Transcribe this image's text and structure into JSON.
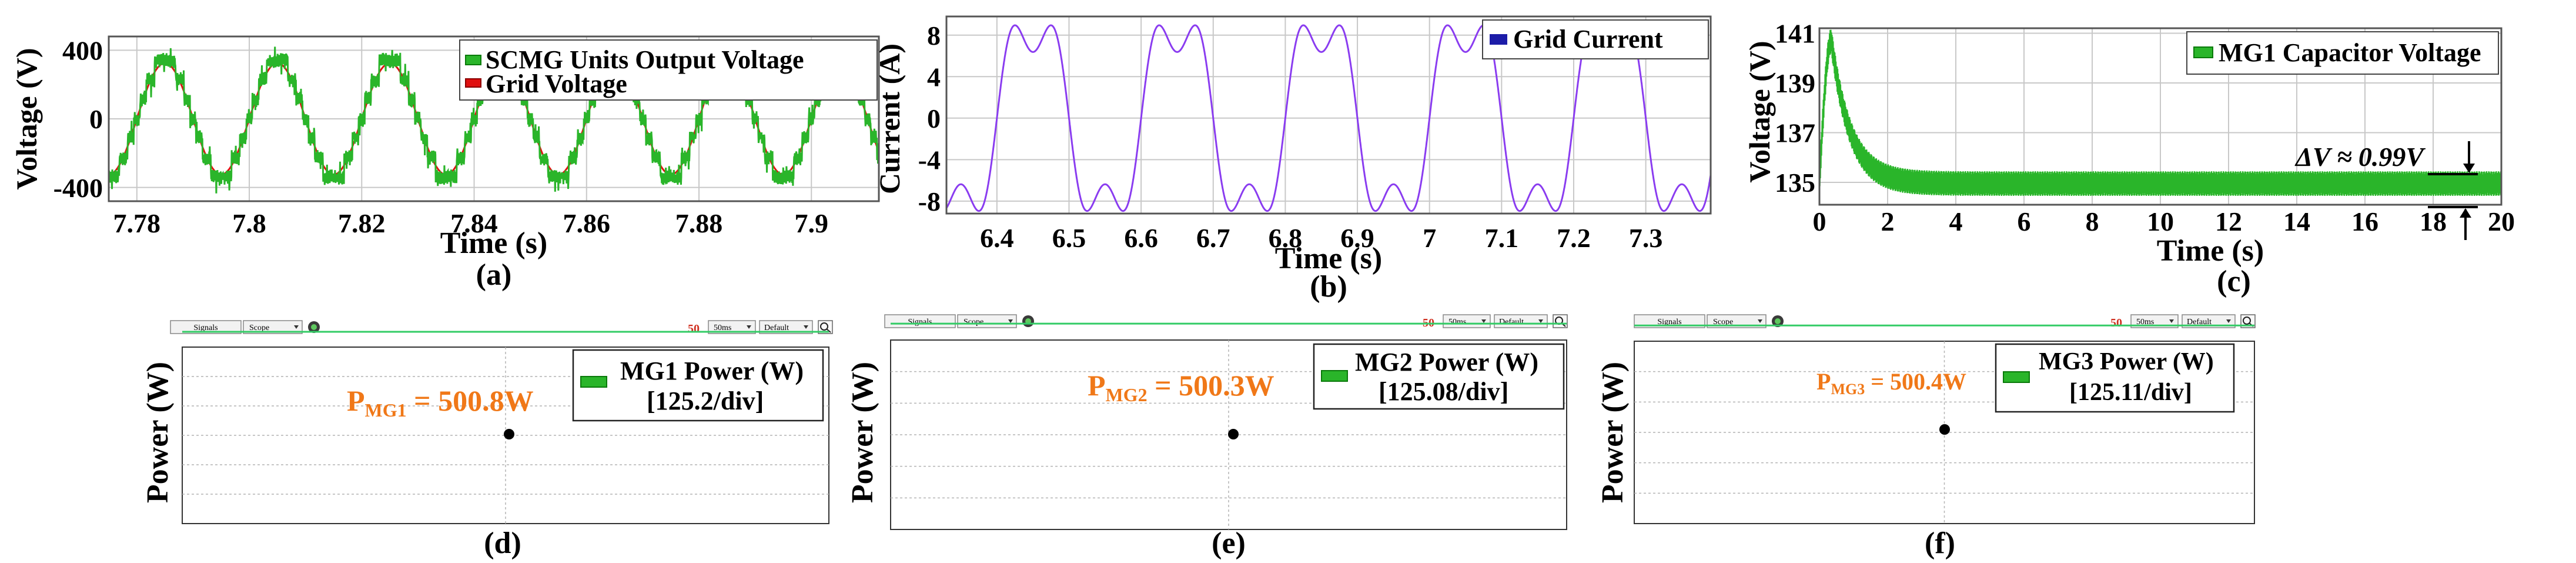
{
  "colors": {
    "green": "#2ab52a",
    "green_dark": "#0a7a0a",
    "red": "#e01010",
    "purple": "#8a3cf0",
    "navy": "#1c1ca8",
    "orange": "#f07818",
    "scope_line": "#33cc66",
    "grid": "#c8c8c8"
  },
  "panels": {
    "a": {
      "caption": "(a)",
      "legend": [
        "SCMG Units Output Voltage",
        "Grid Voltage"
      ]
    },
    "b": {
      "caption": "(b)",
      "legend": [
        "Grid Current"
      ]
    },
    "c": {
      "caption": "(c)",
      "legend": [
        "MG1 Capacitor Voltage"
      ],
      "annotation": "ΔV ≈ 0.99V"
    },
    "d": {
      "caption": "(d)",
      "ylabel": "Power (W)",
      "toolbar": {
        "signals": "Signals",
        "scope": "Scope",
        "timebase": "50ms",
        "mode": "Default"
      },
      "legend_title": "MG1 Power (W)",
      "legend_scale": "[125.2/div]",
      "reading_main": "P",
      "reading_sub": "MG1",
      "reading_tail": " = 500.8W"
    },
    "e": {
      "caption": "(e)",
      "ylabel": "Power (W)",
      "toolbar": {
        "signals": "Signals",
        "scope": "Scope",
        "timebase": "50ms",
        "mode": "Default"
      },
      "legend_title": "MG2 Power (W)",
      "legend_scale": "[125.08/div]",
      "reading_main": "P",
      "reading_sub": "MG2",
      "reading_tail": " = 500.3W"
    },
    "f": {
      "caption": "(f)",
      "ylabel": "Power (W)",
      "toolbar": {
        "signals": "Signals",
        "scope": "Scope",
        "timebase": "50ms",
        "mode": "Default"
      },
      "legend_title": "MG3 Power (W)",
      "legend_scale": "[125.11/div]",
      "reading_main": "P",
      "reading_sub": "MG3",
      "reading_tail": " = 500.4W"
    }
  },
  "chart_data": [
    {
      "id": "a",
      "type": "line",
      "title": "",
      "xlabel": "Time (s)",
      "ylabel": "Voltage (V)",
      "xlim": [
        7.775,
        7.912
      ],
      "ylim": [
        -480,
        480
      ],
      "xticks": [
        7.78,
        7.8,
        7.82,
        7.84,
        7.86,
        7.88,
        7.9
      ],
      "xtick_labels": [
        "7.78",
        "7.8",
        "7.82",
        "7.84",
        "7.86",
        "7.88",
        "7.9"
      ],
      "yticks": [
        -400,
        0,
        400
      ],
      "ytick_labels": [
        "-400",
        "0",
        "400"
      ],
      "grid": true,
      "legend_position": "top-right",
      "series": [
        {
          "name": "SCMG Units Output Voltage",
          "kind": "multilevel",
          "frequency_hz": 50,
          "amplitude": 340,
          "levels": 7,
          "ripple": 45
        },
        {
          "name": "Grid Voltage",
          "kind": "sine",
          "frequency_hz": 50,
          "amplitude": 325
        }
      ]
    },
    {
      "id": "b",
      "type": "line",
      "title": "",
      "xlabel": "Time (s)",
      "ylabel": "Current (A)",
      "xlim": [
        6.33,
        7.39
      ],
      "ylim": [
        -9.2,
        9.8
      ],
      "xticks": [
        6.4,
        6.5,
        6.6,
        6.7,
        6.8,
        6.9,
        7.0,
        7.1,
        7.2,
        7.3
      ],
      "xtick_labels": [
        "6.4",
        "6.5",
        "6.6",
        "6.7",
        "6.8",
        "6.9",
        "7",
        "7.1",
        "7.2",
        "7.3"
      ],
      "yticks": [
        -8,
        -4,
        0,
        4,
        8
      ],
      "ytick_labels": [
        "-8",
        "-4",
        "0",
        "4",
        "8"
      ],
      "grid": true,
      "legend_position": "top-right",
      "series": [
        {
          "name": "Grid Current",
          "kind": "flat-top",
          "frequency_hz": 5,
          "peak": 9.3,
          "dip": 5.8
        }
      ]
    },
    {
      "id": "c",
      "type": "line",
      "title": "",
      "xlabel": "Time (s)",
      "ylabel": "Voltage (V)",
      "xlim": [
        0,
        20
      ],
      "ylim": [
        134.1,
        141.2
      ],
      "xticks": [
        0,
        2,
        4,
        6,
        8,
        10,
        12,
        14,
        16,
        18,
        20
      ],
      "xtick_labels": [
        "0",
        "2",
        "4",
        "6",
        "8",
        "10",
        "12",
        "14",
        "16",
        "18",
        "20"
      ],
      "yticks": [
        135,
        137,
        139,
        141
      ],
      "ytick_labels": [
        "135",
        "137",
        "139",
        "141"
      ],
      "grid": true,
      "legend_position": "top-right",
      "series": [
        {
          "name": "MG1 Capacitor Voltage",
          "initial": 135.0,
          "peak": 140.7,
          "peak_time": 0.35,
          "steady_state": 134.95,
          "ripple": 0.99
        }
      ]
    },
    {
      "id": "d",
      "type": "line",
      "ylabel": "Power (W)",
      "grid": true,
      "series": [
        {
          "name": "MG1 Power (W)",
          "value": 500.8,
          "scale_per_div": 125.2,
          "divisions": 5
        }
      ]
    },
    {
      "id": "e",
      "type": "line",
      "ylabel": "Power (W)",
      "grid": true,
      "series": [
        {
          "name": "MG2 Power (W)",
          "value": 500.3,
          "scale_per_div": 125.08,
          "divisions": 5
        }
      ]
    },
    {
      "id": "f",
      "type": "line",
      "ylabel": "Power (W)",
      "grid": true,
      "series": [
        {
          "name": "MG3 Power (W)",
          "value": 500.4,
          "scale_per_div": 125.11,
          "divisions": 5
        }
      ]
    }
  ]
}
